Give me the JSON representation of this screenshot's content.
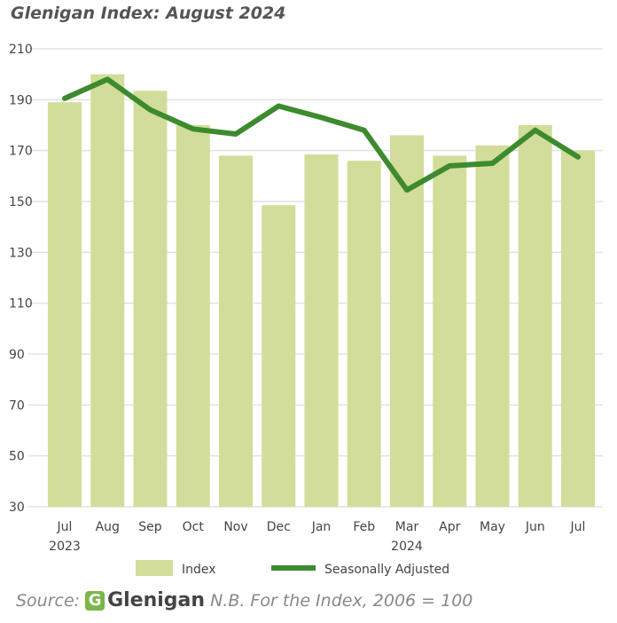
{
  "chart_data": {
    "type": "bar",
    "title": "Glenigan Index: August 2024",
    "categories": [
      "Jul",
      "Aug",
      "Sep",
      "Oct",
      "Nov",
      "Dec",
      "Jan",
      "Feb",
      "Mar",
      "Apr",
      "May",
      "Jun",
      "Jul"
    ],
    "year_labels": {
      "0": "2023",
      "8": "2024"
    },
    "series": [
      {
        "name": "Index",
        "type": "bar",
        "color": "#d2dd9a",
        "values": [
          189,
          200,
          193.5,
          180,
          168,
          148.5,
          168.5,
          166,
          176,
          168,
          172,
          180,
          170
        ]
      },
      {
        "name": "Seasonally Adjusted",
        "type": "line",
        "color": "#3d8a2f",
        "values": [
          190.5,
          198,
          186,
          178.5,
          176.5,
          187.5,
          183,
          178,
          154.5,
          164,
          165,
          178,
          167.5
        ]
      }
    ],
    "yticks": [
      30,
      50,
      70,
      90,
      110,
      130,
      150,
      170,
      190,
      210
    ],
    "ylim": [
      30,
      210
    ],
    "grid": true,
    "legend": "bottom",
    "xlabel": "",
    "ylabel": ""
  },
  "source": {
    "label": "Source:",
    "brand": "Glenigan",
    "brand_mark": "G",
    "note": "N.B. For the Index, 2006 = 100"
  }
}
